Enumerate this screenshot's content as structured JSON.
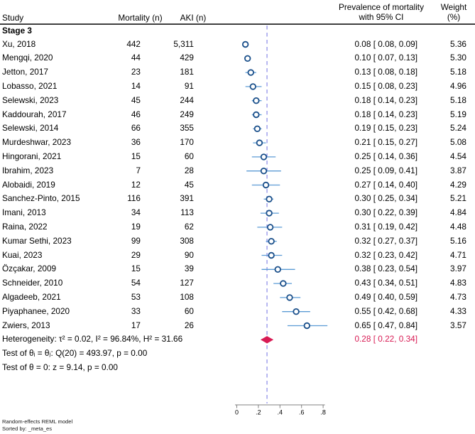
{
  "header": {
    "study": "Study",
    "mortality": "Mortality (n)",
    "aki": "AKI (n)",
    "effect_line1": "Prevalence of mortality",
    "effect_line2": "with 95% CI",
    "weight_line1": "Weight",
    "weight_line2": "(%)"
  },
  "notes": [
    "Heterogeneity: τ² = 0.02, I² = 96.84%, H² = 31.66",
    "Test of θᵢ = θⱼ: Q(20) = 493.97, p = 0.00",
    "Test of θ = 0: z = 9.14, p = 0.00"
  ],
  "footnotes": [
    "Random-effects REML model",
    "Sorted by: _meta_es"
  ],
  "colors": {
    "marker_stroke": "#1a4f8a",
    "marker_fill": "#ffffff",
    "ci_line": "#5b9bd5",
    "diamond": "#d81b54",
    "summary_text": "#d81b54",
    "ref_line": "#9191ea",
    "axis": "#808080",
    "tick_text": "#000000"
  },
  "chart_data": {
    "type": "forest",
    "title": "",
    "effect_label": "Prevalence of mortality with 95% CI",
    "group": "Stage 3",
    "x_range": [
      0,
      0.8
    ],
    "ref_line": 0.28,
    "xticks": [
      {
        "v": 0.0,
        "label": "0"
      },
      {
        "v": 0.2,
        "label": ".2"
      },
      {
        "v": 0.4,
        "label": ".4"
      },
      {
        "v": 0.6,
        "label": ".6"
      },
      {
        "v": 0.8,
        "label": ".8"
      }
    ],
    "studies": [
      {
        "name": "Xu, 2018",
        "mortality": "442",
        "aki": "5,311",
        "est": 0.08,
        "lo": 0.08,
        "hi": 0.09,
        "ci_label": "0.08 [ 0.08, 0.09]",
        "weight": "5.36"
      },
      {
        "name": "Mengqi, 2020",
        "mortality": "44",
        "aki": "429",
        "est": 0.1,
        "lo": 0.07,
        "hi": 0.13,
        "ci_label": "0.10 [ 0.07, 0.13]",
        "weight": "5.30"
      },
      {
        "name": "Jetton, 2017",
        "mortality": "23",
        "aki": "181",
        "est": 0.13,
        "lo": 0.08,
        "hi": 0.18,
        "ci_label": "0.13 [ 0.08, 0.18]",
        "weight": "5.18"
      },
      {
        "name": "Lobasso, 2021",
        "mortality": "14",
        "aki": "91",
        "est": 0.15,
        "lo": 0.08,
        "hi": 0.23,
        "ci_label": "0.15 [ 0.08, 0.23]",
        "weight": "4.96"
      },
      {
        "name": "Selewski, 2023",
        "mortality": "45",
        "aki": "244",
        "est": 0.18,
        "lo": 0.14,
        "hi": 0.23,
        "ci_label": "0.18 [ 0.14, 0.23]",
        "weight": "5.18"
      },
      {
        "name": "Kaddourah, 2017",
        "mortality": "46",
        "aki": "249",
        "est": 0.18,
        "lo": 0.14,
        "hi": 0.23,
        "ci_label": "0.18 [ 0.14, 0.23]",
        "weight": "5.19"
      },
      {
        "name": "Selewski, 2014",
        "mortality": "66",
        "aki": "355",
        "est": 0.19,
        "lo": 0.15,
        "hi": 0.23,
        "ci_label": "0.19 [ 0.15, 0.23]",
        "weight": "5.24"
      },
      {
        "name": "Murdeshwar, 2023",
        "mortality": "36",
        "aki": "170",
        "est": 0.21,
        "lo": 0.15,
        "hi": 0.27,
        "ci_label": "0.21 [ 0.15, 0.27]",
        "weight": "5.08"
      },
      {
        "name": "Hingorani, 2021",
        "mortality": "15",
        "aki": "60",
        "est": 0.25,
        "lo": 0.14,
        "hi": 0.36,
        "ci_label": "0.25 [ 0.14, 0.36]",
        "weight": "4.54"
      },
      {
        "name": "Ibrahim, 2023",
        "mortality": "7",
        "aki": "28",
        "est": 0.25,
        "lo": 0.09,
        "hi": 0.41,
        "ci_label": "0.25 [ 0.09, 0.41]",
        "weight": "3.87"
      },
      {
        "name": "Alobaidi, 2019",
        "mortality": "12",
        "aki": "45",
        "est": 0.27,
        "lo": 0.14,
        "hi": 0.4,
        "ci_label": "0.27 [ 0.14, 0.40]",
        "weight": "4.29"
      },
      {
        "name": "Sanchez-Pinto, 2015",
        "mortality": "116",
        "aki": "391",
        "est": 0.3,
        "lo": 0.25,
        "hi": 0.34,
        "ci_label": "0.30 [ 0.25, 0.34]",
        "weight": "5.21"
      },
      {
        "name": "Imani, 2013",
        "mortality": "34",
        "aki": "113",
        "est": 0.3,
        "lo": 0.22,
        "hi": 0.39,
        "ci_label": "0.30 [ 0.22, 0.39]",
        "weight": "4.84"
      },
      {
        "name": "Raina, 2022",
        "mortality": "19",
        "aki": "62",
        "est": 0.31,
        "lo": 0.19,
        "hi": 0.42,
        "ci_label": "0.31 [ 0.19, 0.42]",
        "weight": "4.48"
      },
      {
        "name": "Kumar Sethi, 2023",
        "mortality": "99",
        "aki": "308",
        "est": 0.32,
        "lo": 0.27,
        "hi": 0.37,
        "ci_label": "0.32 [ 0.27, 0.37]",
        "weight": "5.16"
      },
      {
        "name": "Kuai, 2023",
        "mortality": "29",
        "aki": "90",
        "est": 0.32,
        "lo": 0.23,
        "hi": 0.42,
        "ci_label": "0.32 [ 0.23, 0.42]",
        "weight": "4.71"
      },
      {
        "name": "Özçakar, 2009",
        "mortality": "15",
        "aki": "39",
        "est": 0.38,
        "lo": 0.23,
        "hi": 0.54,
        "ci_label": "0.38 [ 0.23, 0.54]",
        "weight": "3.97"
      },
      {
        "name": "Schneider, 2010",
        "mortality": "54",
        "aki": "127",
        "est": 0.43,
        "lo": 0.34,
        "hi": 0.51,
        "ci_label": "0.43 [ 0.34, 0.51]",
        "weight": "4.83"
      },
      {
        "name": "Algadeeb, 2021",
        "mortality": "53",
        "aki": "108",
        "est": 0.49,
        "lo": 0.4,
        "hi": 0.59,
        "ci_label": "0.49 [ 0.40, 0.59]",
        "weight": "4.73"
      },
      {
        "name": "Piyaphanee, 2020",
        "mortality": "33",
        "aki": "60",
        "est": 0.55,
        "lo": 0.42,
        "hi": 0.68,
        "ci_label": "0.55 [ 0.42, 0.68]",
        "weight": "4.33"
      },
      {
        "name": "Zwiers, 2013",
        "mortality": "17",
        "aki": "26",
        "est": 0.65,
        "lo": 0.47,
        "hi": 0.84,
        "ci_label": "0.65 [ 0.47, 0.84]",
        "weight": "3.57"
      }
    ],
    "overall": {
      "est": 0.28,
      "lo": 0.22,
      "hi": 0.34,
      "ci_label": "0.28 [ 0.22, 0.34]"
    }
  }
}
